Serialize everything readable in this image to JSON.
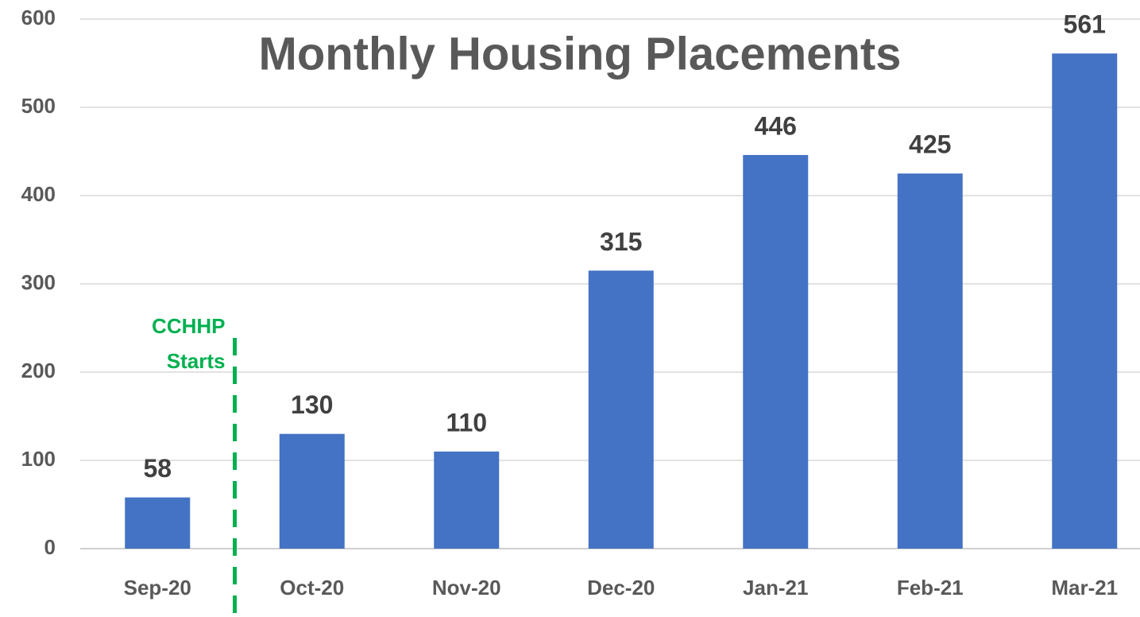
{
  "chart_data": {
    "type": "bar",
    "title": "Monthly Housing Placements",
    "categories": [
      "Sep-20",
      "Oct-20",
      "Nov-20",
      "Dec-20",
      "Jan-21",
      "Feb-21",
      "Mar-21"
    ],
    "values": [
      58,
      130,
      110,
      315,
      446,
      425,
      561
    ],
    "color": "#4472c4",
    "ylim": [
      0,
      600
    ],
    "yticks": [
      0,
      100,
      200,
      300,
      400,
      500,
      600
    ],
    "grid": true,
    "annotations": [
      {
        "lines": [
          "CCHHP",
          "Starts"
        ],
        "color": "#00b050"
      }
    ]
  }
}
